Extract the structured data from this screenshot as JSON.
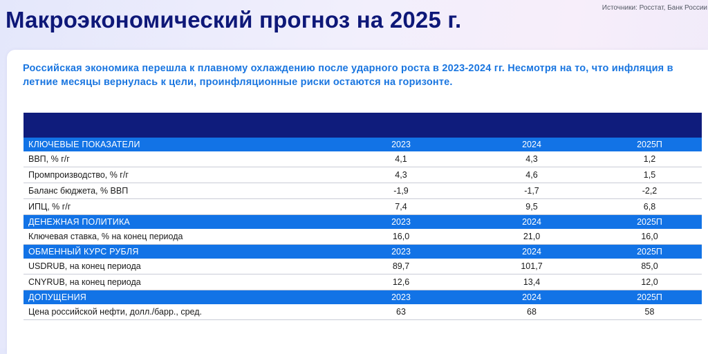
{
  "header": {
    "title": "Макроэкономический прогноз на 2025 г.",
    "source": "Источники: Росстат, Банк России"
  },
  "lead_text": "Российская экономика перешла к плавному охлаждению после ударного роста в 2023-2024 гг. Несмотря на то, что инфляция в летние месяцы вернулась к цели, проинфляционные риски остаются на горизонте.",
  "colors": {
    "title": "#0e1878",
    "lead": "#1a76e0",
    "table_top_bar": "#0f1c7c",
    "section_header": "#1273e6"
  },
  "table": {
    "sections": [
      {
        "title": "КЛЮЧЕВЫЕ ПОКАЗАТЕЛИ",
        "columns": [
          "2023",
          "2024",
          "2025П"
        ],
        "rows": [
          {
            "label": "ВВП, % г/г",
            "values": [
              "4,1",
              "4,3",
              "1,2"
            ]
          },
          {
            "label": "Промпроизводство, % г/г",
            "values": [
              "4,3",
              "4,6",
              "1,5"
            ]
          },
          {
            "label": "Баланс бюджета, % ВВП",
            "values": [
              "-1,9",
              "-1,7",
              "-2,2"
            ]
          },
          {
            "label": "ИПЦ, % г/г",
            "values": [
              "7,4",
              "9,5",
              "6,8"
            ]
          }
        ]
      },
      {
        "title": "ДЕНЕЖНАЯ ПОЛИТИКА",
        "columns": [
          "2023",
          "2024",
          "2025П"
        ],
        "rows": [
          {
            "label": "Ключевая ставка, % на конец периода",
            "values": [
              "16,0",
              "21,0",
              "16,0"
            ]
          }
        ]
      },
      {
        "title": "ОБМЕННЫЙ КУРС РУБЛЯ",
        "columns": [
          "2023",
          "2024",
          "2025П"
        ],
        "rows": [
          {
            "label": "USDRUB, на конец периода",
            "values": [
              "89,7",
              "101,7",
              "85,0"
            ]
          },
          {
            "label": "CNYRUB, на конец периода",
            "values": [
              "12,6",
              "13,4",
              "12,0"
            ]
          }
        ]
      },
      {
        "title": "ДОПУЩЕНИЯ",
        "columns": [
          "2023",
          "2024",
          "2025П"
        ],
        "rows": [
          {
            "label": "Цена российской нефти, долл./барр., сред.",
            "values": [
              "63",
              "68",
              "58"
            ]
          }
        ]
      }
    ]
  }
}
